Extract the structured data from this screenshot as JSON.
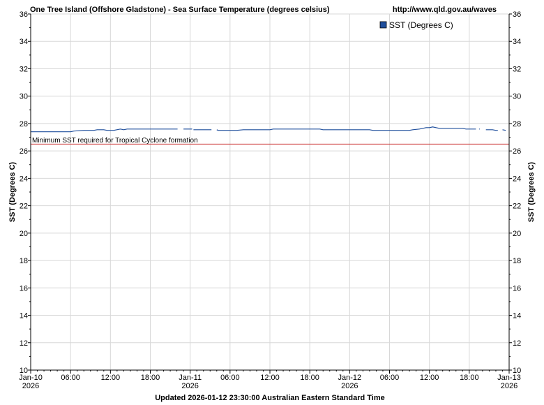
{
  "header": {
    "title": "One Tree Island (Offshore Gladstone) - Sea Surface Temperature (degrees celsius)",
    "url": "http://www.qld.gov.au/waves"
  },
  "footer": {
    "updated": "Updated 2026-01-12 23:30:00 Australian Eastern Standard Time"
  },
  "colors": {
    "series": "#1f4e9c",
    "threshold": "#cc3333",
    "grid": "#d8d8d8",
    "legend_box": "#1f4e9c"
  },
  "chart_data": {
    "type": "line",
    "ylabel_left": "SST (Degrees C)",
    "ylabel_right": "SST (Degrees C)",
    "ylim": [
      10,
      36
    ],
    "y_ticks": [
      10,
      12,
      14,
      16,
      18,
      20,
      22,
      24,
      26,
      28,
      30,
      32,
      34,
      36
    ],
    "xlim_hours": [
      0,
      72
    ],
    "x_ticks": [
      {
        "hour": 0,
        "label": "Jan-10",
        "sublabel": "2026"
      },
      {
        "hour": 6,
        "label": "06:00",
        "sublabel": ""
      },
      {
        "hour": 12,
        "label": "12:00",
        "sublabel": ""
      },
      {
        "hour": 18,
        "label": "18:00",
        "sublabel": ""
      },
      {
        "hour": 24,
        "label": "Jan-11",
        "sublabel": "2026"
      },
      {
        "hour": 30,
        "label": "06:00",
        "sublabel": ""
      },
      {
        "hour": 36,
        "label": "12:00",
        "sublabel": ""
      },
      {
        "hour": 42,
        "label": "18:00",
        "sublabel": ""
      },
      {
        "hour": 48,
        "label": "Jan-12",
        "sublabel": "2026"
      },
      {
        "hour": 54,
        "label": "06:00",
        "sublabel": ""
      },
      {
        "hour": 60,
        "label": "12:00",
        "sublabel": ""
      },
      {
        "hour": 66,
        "label": "18:00",
        "sublabel": ""
      },
      {
        "hour": 72,
        "label": "Jan-13",
        "sublabel": "2026"
      }
    ],
    "grid": true,
    "legend": {
      "position": "top-right",
      "label": "SST (Degrees C)"
    },
    "threshold": {
      "value": 26.5,
      "label": "Minimum SST required for Tropical Cyclone formation"
    },
    "series": [
      {
        "name": "SST (Degrees C)",
        "segments": [
          [
            [
              0,
              27.4
            ],
            [
              3,
              27.4
            ],
            [
              6,
              27.4
            ],
            [
              6.5,
              27.45
            ],
            [
              8,
              27.5
            ],
            [
              9.5,
              27.5
            ],
            [
              10,
              27.55
            ],
            [
              11,
              27.55
            ],
            [
              11.5,
              27.5
            ],
            [
              12.5,
              27.5
            ],
            [
              13.5,
              27.6
            ],
            [
              14,
              27.55
            ],
            [
              14.5,
              27.6
            ],
            [
              16,
              27.6
            ],
            [
              18,
              27.6
            ],
            [
              20,
              27.6
            ],
            [
              22,
              27.6
            ],
            [
              22.1,
              27.6
            ]
          ],
          [
            [
              23,
              27.6
            ],
            [
              24.3,
              27.6
            ]
          ],
          [
            [
              24.5,
              27.55
            ],
            [
              26,
              27.55
            ],
            [
              27.2,
              27.55
            ]
          ],
          [
            [
              28,
              27.55
            ],
            [
              28.2,
              27.5
            ],
            [
              29,
              27.5
            ],
            [
              31,
              27.5
            ],
            [
              32,
              27.55
            ],
            [
              34,
              27.55
            ],
            [
              36,
              27.55
            ],
            [
              36.5,
              27.6
            ],
            [
              38,
              27.6
            ],
            [
              40,
              27.6
            ],
            [
              42,
              27.6
            ],
            [
              43.5,
              27.6
            ],
            [
              44,
              27.55
            ],
            [
              46,
              27.55
            ],
            [
              48,
              27.55
            ],
            [
              49,
              27.55
            ],
            [
              51,
              27.55
            ],
            [
              51.5,
              27.5
            ],
            [
              53,
              27.5
            ],
            [
              55,
              27.5
            ],
            [
              57,
              27.5
            ],
            [
              57.5,
              27.55
            ],
            [
              58.5,
              27.6
            ],
            [
              59.5,
              27.7
            ],
            [
              60,
              27.7
            ],
            [
              60.5,
              27.75
            ],
            [
              61,
              27.7
            ],
            [
              61.5,
              27.65
            ],
            [
              62,
              27.65
            ],
            [
              64,
              27.65
            ],
            [
              65,
              27.65
            ],
            [
              65.5,
              27.6
            ],
            [
              67,
              27.6
            ]
          ],
          [
            [
              67.5,
              27.6
            ],
            [
              67.6,
              27.6
            ]
          ],
          [
            [
              68.5,
              27.55
            ],
            [
              69.5,
              27.55
            ],
            [
              70,
              27.5
            ],
            [
              70.3,
              27.5
            ]
          ],
          [
            [
              71,
              27.55
            ],
            [
              71.5,
              27.5
            ]
          ]
        ]
      }
    ]
  }
}
